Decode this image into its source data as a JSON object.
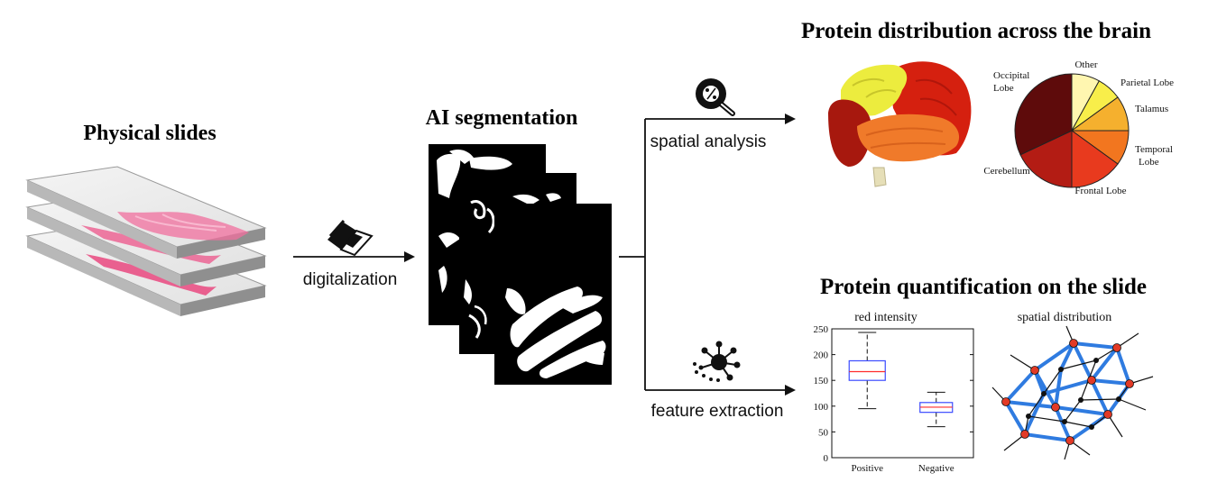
{
  "sections": {
    "physical_slides": "Physical slides",
    "ai_segmentation": "AI segmentation",
    "brain_title": "Protein distribution across the brain",
    "quant_title": "Protein quantification on the slide"
  },
  "steps": {
    "digitalization": "digitalization",
    "spatial_analysis": "spatial analysis",
    "feature_extraction": "feature extraction"
  },
  "icons": {
    "scanner": "scanner-icon",
    "magnifier": "magnifier-percent-icon",
    "network": "network-node-icon",
    "brain": "brain-illustration"
  },
  "chart_data": [
    {
      "type": "pie",
      "title": "",
      "slices": [
        {
          "label": "Other",
          "value": 8,
          "color": "#FFF6B0"
        },
        {
          "label": "Parietal Lobe",
          "value": 7,
          "color": "#F8EE4A"
        },
        {
          "label": "Talamus",
          "value": 10,
          "color": "#F5B02E"
        },
        {
          "label": "Temporal Lobe",
          "value": 10,
          "color": "#F2761F"
        },
        {
          "label": "Frontal Lobe",
          "value": 15,
          "color": "#E83A1E"
        },
        {
          "label": "Cerebellum",
          "value": 18,
          "color": "#B31C14"
        },
        {
          "label": "Occipital Lobe",
          "value": 32,
          "color": "#5E0B0B"
        }
      ]
    },
    {
      "type": "box",
      "title": "red intensity",
      "categories": [
        "Positive",
        "Negative"
      ],
      "boxes": [
        {
          "name": "Positive",
          "min": 95,
          "q1": 150,
          "median": 167,
          "q3": 188,
          "max": 243
        },
        {
          "name": "Negative",
          "min": 60,
          "q1": 88,
          "median": 98,
          "q3": 107,
          "max": 127
        }
      ],
      "ylim": [
        0,
        250
      ],
      "yticks": [
        0,
        50,
        100,
        150,
        200,
        250
      ],
      "box_color": "#3B4BFF",
      "median_color": "#FF2A2A"
    }
  ],
  "network": {
    "title": "spatial distribution",
    "edge_color": "#2F7BE0",
    "node_color": "#E23A26"
  }
}
